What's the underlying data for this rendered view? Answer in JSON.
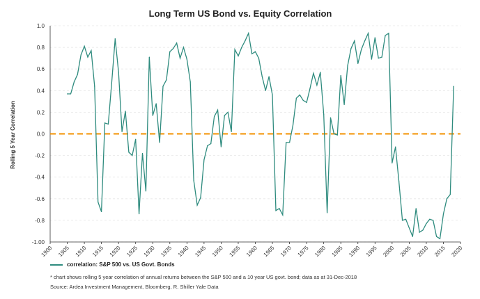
{
  "colors": {
    "series": "#2e8b7e",
    "zero_line": "#f39200",
    "grid": "#e6e6e6",
    "axis": "#333333"
  },
  "chart_data": {
    "type": "line",
    "title": "Long Term US Bond vs. Equity Correlation",
    "xlabel": "",
    "ylabel": "Rolling 5 Year Correlation",
    "xlim": [
      1900,
      2020
    ],
    "ylim": [
      -1.0,
      1.0
    ],
    "x_ticks": [
      "1900",
      "1905",
      "1910",
      "1915",
      "1920",
      "1925",
      "1930",
      "1935",
      "1940",
      "1945",
      "1950",
      "1955",
      "1960",
      "1965",
      "1970",
      "1975",
      "1980",
      "1985",
      "1990",
      "1995",
      "2000",
      "2005",
      "2010",
      "2015",
      "2020"
    ],
    "y_ticks": [
      "1.0",
      "0.8",
      "0.6",
      "0.4",
      "0.2",
      "0.0",
      "-0.2",
      "-0.4",
      "-0.6",
      "-0.8",
      "-1.00"
    ],
    "grid": "horizontal dashed",
    "legend_placement": "bottom-left",
    "reference_line": {
      "y": 0.0,
      "style": "dashed"
    },
    "series": [
      {
        "name": "correlation: S&P 500 vs. US Govt. Bonds",
        "x": [
          1905,
          1906,
          1907,
          1908,
          1909,
          1910,
          1911,
          1912,
          1913,
          1914,
          1915,
          1916,
          1917,
          1918,
          1919,
          1920,
          1921,
          1922,
          1923,
          1924,
          1925,
          1926,
          1927,
          1928,
          1929,
          1930,
          1931,
          1932,
          1933,
          1934,
          1935,
          1936,
          1937,
          1938,
          1939,
          1940,
          1941,
          1942,
          1943,
          1944,
          1945,
          1946,
          1947,
          1948,
          1949,
          1950,
          1951,
          1952,
          1953,
          1954,
          1955,
          1956,
          1957,
          1958,
          1959,
          1960,
          1961,
          1962,
          1963,
          1964,
          1965,
          1966,
          1967,
          1968,
          1969,
          1970,
          1971,
          1972,
          1973,
          1974,
          1975,
          1976,
          1977,
          1978,
          1979,
          1980,
          1981,
          1982,
          1983,
          1984,
          1985,
          1986,
          1987,
          1988,
          1989,
          1990,
          1991,
          1992,
          1993,
          1994,
          1995,
          1996,
          1997,
          1998,
          1999,
          2000,
          2001,
          2002,
          2003,
          2004,
          2005,
          2006,
          2007,
          2008,
          2009,
          2010,
          2011,
          2012,
          2013,
          2014,
          2015,
          2016,
          2017,
          2018
        ],
        "values": [
          0.37,
          0.37,
          0.48,
          0.55,
          0.73,
          0.81,
          0.71,
          0.77,
          0.44,
          -0.63,
          -0.72,
          0.1,
          0.09,
          0.47,
          0.88,
          0.57,
          0.02,
          0.21,
          -0.17,
          -0.2,
          -0.05,
          -0.74,
          -0.18,
          -0.53,
          0.71,
          0.17,
          0.28,
          -0.08,
          0.44,
          0.5,
          0.76,
          0.79,
          0.84,
          0.7,
          0.8,
          0.69,
          0.48,
          -0.43,
          -0.66,
          -0.59,
          -0.24,
          -0.11,
          -0.09,
          0.16,
          0.22,
          -0.12,
          0.17,
          0.2,
          0.02,
          0.78,
          0.72,
          0.8,
          0.86,
          0.93,
          0.74,
          0.76,
          0.7,
          0.53,
          0.4,
          0.53,
          0.36,
          -0.71,
          -0.69,
          -0.75,
          -0.08,
          -0.08,
          0.08,
          0.33,
          0.36,
          0.31,
          0.29,
          0.42,
          0.56,
          0.45,
          0.57,
          0.18,
          -0.73,
          0.15,
          0.0,
          -0.01,
          0.54,
          0.27,
          0.63,
          0.79,
          0.86,
          0.65,
          0.78,
          0.86,
          0.93,
          0.69,
          0.89,
          0.7,
          0.71,
          0.91,
          0.93,
          -0.27,
          -0.12,
          -0.44,
          -0.8,
          -0.79,
          -0.87,
          -0.95,
          -0.69,
          -0.91,
          -0.89,
          -0.83,
          -0.79,
          -0.8,
          -0.95,
          -0.97,
          -0.74,
          -0.6,
          -0.56,
          0.44
        ]
      }
    ]
  },
  "notes": {
    "footnote": "* chart shows rolling 5 year correlation of annual returns between the S&P 500 and a 10 year US govt. bond; data as at 31-Dec-2018",
    "source": "Source: Ardea Investment Management, Bloomberg, R. Shiller Yale Data"
  }
}
